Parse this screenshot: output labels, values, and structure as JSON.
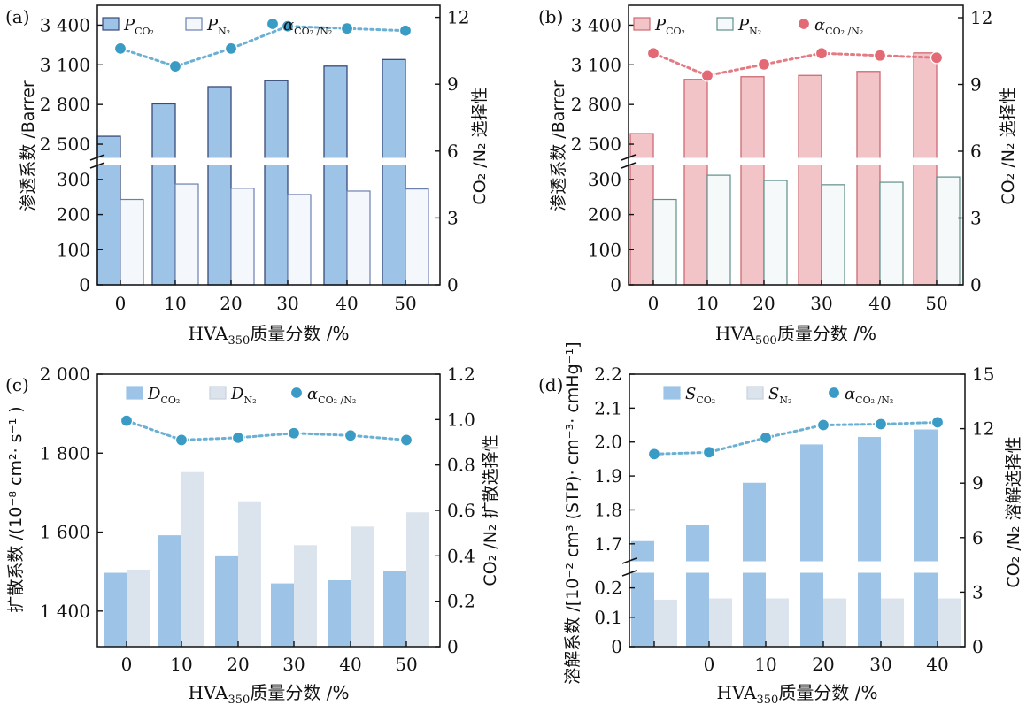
{
  "figure": {
    "note": "x-axis: HVA loading (%), all panels"
  },
  "chart_data": [
    {
      "id": "a",
      "type": "bar",
      "panel_label": "(a)",
      "categories": [
        "0",
        "10",
        "20",
        "30",
        "40",
        "50"
      ],
      "xlabel_main": "HVA",
      "xlabel_sub": "350",
      "xlabel_rest": "质量分数 /%",
      "ylabel_left": "渗透系数 /Barrer",
      "ylabel_right": "CO₂ /N₂ 选择性",
      "broken_left_axis": true,
      "ylim_lower": [
        0,
        340
      ],
      "yticks_lower": [
        "0",
        "100",
        "200",
        "300"
      ],
      "ylim_upper": [
        2400,
        3550
      ],
      "yticks_upper": [
        "2 500",
        "2 800",
        "3 100",
        "3 400"
      ],
      "ylim_right": [
        0,
        12.5
      ],
      "yticks_right": [
        "0",
        "3",
        "6",
        "9",
        "12"
      ],
      "series": [
        {
          "name": "P",
          "sub": "CO₂",
          "kind": "bar",
          "values": [
            2560,
            2805,
            2935,
            2980,
            3090,
            3140
          ]
        },
        {
          "name": "P",
          "sub": "N₂",
          "kind": "bar",
          "values": [
            243,
            287,
            275,
            257,
            267,
            273
          ]
        },
        {
          "name": "α",
          "sub": "CO₂ /N₂",
          "kind": "line",
          "axis": "right",
          "values": [
            10.6,
            9.8,
            10.6,
            11.6,
            11.5,
            11.4
          ]
        }
      ],
      "colors": {
        "bar1": "#9dc4e6",
        "bar1_edge": "#3a4a7a",
        "bar2": "#f4f8fc",
        "bar2_edge": "#6a7fb0",
        "line": "#6bb0d2",
        "marker": "#3a9bc4"
      },
      "legend_position": "top"
    },
    {
      "id": "b",
      "type": "bar",
      "panel_label": "(b)",
      "categories": [
        "0",
        "10",
        "20",
        "30",
        "40",
        "50"
      ],
      "xlabel_main": "HVA",
      "xlabel_sub": "500",
      "xlabel_rest": "质量分数 /%",
      "ylabel_left": "渗透系数 /Barrer",
      "ylabel_right": "CO₂ /N₂ 选择性",
      "broken_left_axis": true,
      "ylim_lower": [
        0,
        340
      ],
      "yticks_lower": [
        "0",
        "100",
        "200",
        "300"
      ],
      "ylim_upper": [
        2400,
        3550
      ],
      "yticks_upper": [
        "2 500",
        "2 800",
        "3 100",
        "3 400"
      ],
      "ylim_right": [
        0,
        12
      ],
      "yticks_right": [
        "0",
        "3",
        "6",
        "9",
        "12"
      ],
      "series": [
        {
          "name": "P",
          "sub": "CO₂",
          "kind": "bar",
          "values": [
            2580,
            2990,
            3010,
            3020,
            3050,
            3190
          ]
        },
        {
          "name": "P",
          "sub": "N₂",
          "kind": "bar",
          "values": [
            243,
            312,
            297,
            285,
            292,
            307
          ]
        },
        {
          "name": "α",
          "sub": "CO₂ /N₂",
          "kind": "line",
          "axis": "right",
          "values": [
            10.4,
            9.4,
            9.9,
            10.4,
            10.3,
            10.2
          ]
        }
      ],
      "colors": {
        "bar1": "#f2c4c8",
        "bar1_edge": "#cc6a72",
        "bar2": "#f5f9f9",
        "bar2_edge": "#5f8f8a",
        "line": "#e47a84",
        "marker": "#e36a75"
      },
      "legend_position": "top"
    },
    {
      "id": "c",
      "type": "bar",
      "panel_label": "(c)",
      "categories": [
        "0",
        "10",
        "20",
        "30",
        "40",
        "50"
      ],
      "xlabel_main": "HVA",
      "xlabel_sub": "350",
      "xlabel_rest": "质量分数 /%",
      "ylabel_left": "扩散系数 /(10⁻⁸ cm²· s⁻¹ )",
      "ylabel_right": "CO₂ /N₂ 扩散选择性",
      "broken_left_axis": false,
      "ylim_left": [
        1310,
        2000
      ],
      "yticks_left": [
        "1 400",
        "1 600",
        "1 800",
        "2 000"
      ],
      "ylim_right": [
        0,
        1.2
      ],
      "yticks_right": [
        "0",
        "0.2",
        "0.4",
        "0.6",
        "0.8",
        "1.0",
        "1.2"
      ],
      "series": [
        {
          "name": "D",
          "sub": "CO₂",
          "kind": "bar",
          "values": [
            1497,
            1592,
            1541,
            1470,
            1478,
            1502
          ]
        },
        {
          "name": "D",
          "sub": "N₂",
          "kind": "bar",
          "values": [
            1505,
            1752,
            1678,
            1567,
            1614,
            1650
          ]
        },
        {
          "name": "α",
          "sub": "CO₂ /N₂",
          "kind": "line",
          "axis": "right",
          "values": [
            0.995,
            0.91,
            0.92,
            0.94,
            0.93,
            0.91
          ]
        }
      ],
      "colors": {
        "bar1": "#9dc4e6",
        "bar2": "#dbe3ec",
        "line": "#6bb0d2",
        "marker": "#3a9bc4"
      },
      "legend_position": "top"
    },
    {
      "id": "d",
      "type": "bar",
      "panel_label": "(d)",
      "categories": [
        "",
        "0",
        "10",
        "20",
        "30",
        "40"
      ],
      "xlabel_main": "HVA",
      "xlabel_sub": "350",
      "xlabel_rest": "质量分数 /%",
      "ylabel_left": "溶解系数 /[10⁻² cm³ (STP)· cm⁻³· cmHg⁻¹]",
      "ylabel_right": "CO₂ /N₂ 溶解选择性",
      "broken_left_axis": true,
      "ylim_lower": [
        0,
        0.25
      ],
      "yticks_lower": [
        "0",
        "0.1",
        "0.2"
      ],
      "ylim_upper": [
        1.65,
        2.2
      ],
      "yticks_upper": [
        "1.7",
        "1.8",
        "1.9",
        "2.0",
        "2.1",
        "2.2"
      ],
      "ylim_right": [
        0,
        15
      ],
      "yticks_right": [
        "0",
        "3",
        "6",
        "9",
        "12",
        "15"
      ],
      "series": [
        {
          "name": "S",
          "sub": "CO₂",
          "kind": "bar",
          "values": [
            1.708,
            1.756,
            1.88,
            1.993,
            2.015,
            2.037
          ]
        },
        {
          "name": "S",
          "sub": "N₂",
          "kind": "bar",
          "values": [
            0.16,
            0.164,
            0.164,
            0.164,
            0.164,
            0.164
          ]
        },
        {
          "name": "α",
          "sub": "CO₂ /N₂",
          "kind": "line",
          "axis": "right",
          "values": [
            10.6,
            10.7,
            11.5,
            12.2,
            12.25,
            12.35
          ]
        }
      ],
      "colors": {
        "bar1": "#9dc4e6",
        "bar2": "#dbe3ec",
        "line": "#6bb0d2",
        "marker": "#3a9bc4"
      },
      "legend_position": "top"
    }
  ]
}
